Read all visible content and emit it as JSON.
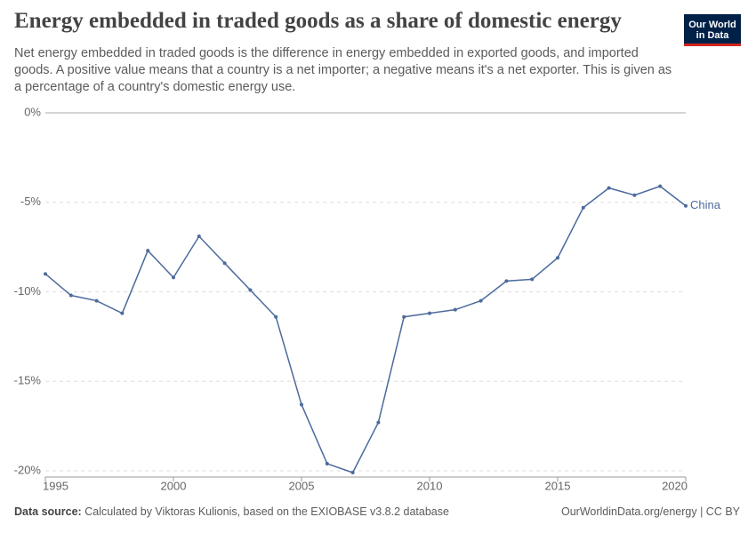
{
  "header": {
    "logo": "Our World in Data"
  },
  "chart_data": {
    "type": "line",
    "title": "Energy embedded in traded goods as a share of domestic energy",
    "subtitle": "Net energy embedded in traded goods is the difference in energy embedded in exported goods, and imported goods. A positive value means that a country is a net importer; a negative means it's a net exporter. This is given as a percentage of a country's domestic energy use.",
    "x": [
      1995,
      1996,
      1997,
      1998,
      1999,
      2000,
      2001,
      2002,
      2003,
      2004,
      2005,
      2006,
      2007,
      2008,
      2009,
      2010,
      2011,
      2012,
      2013,
      2014,
      2015,
      2016,
      2017,
      2018,
      2019,
      2020
    ],
    "series": [
      {
        "name": "China",
        "color": "#4c6a9c",
        "values": [
          -9.0,
          -10.2,
          -10.5,
          -11.2,
          -7.7,
          -9.2,
          -6.9,
          -8.4,
          -9.9,
          -11.4,
          -16.3,
          -19.6,
          -20.1,
          -17.3,
          -11.4,
          -11.2,
          -11.0,
          -10.5,
          -9.4,
          -9.3,
          -8.1,
          -5.3,
          -4.2,
          -4.6,
          -4.1,
          -5.2
        ]
      }
    ],
    "xlim": [
      1995,
      2020
    ],
    "xticks": [
      1995,
      2000,
      2005,
      2010,
      2015,
      2020
    ],
    "ylim": [
      -20,
      0
    ],
    "yticks": [
      {
        "value": 0,
        "label": "0%"
      },
      {
        "value": -5,
        "label": "-5%"
      },
      {
        "value": -10,
        "label": "-10%"
      },
      {
        "value": -15,
        "label": "-15%"
      },
      {
        "value": -20,
        "label": "-20%"
      }
    ],
    "grid": true
  },
  "footer": {
    "source_label": "Data source:",
    "source": "Calculated by Viktoras Kulionis, based on the EXIOBASE v3.8.2 database",
    "credit": "OurWorldinData.org/energy | CC BY"
  }
}
